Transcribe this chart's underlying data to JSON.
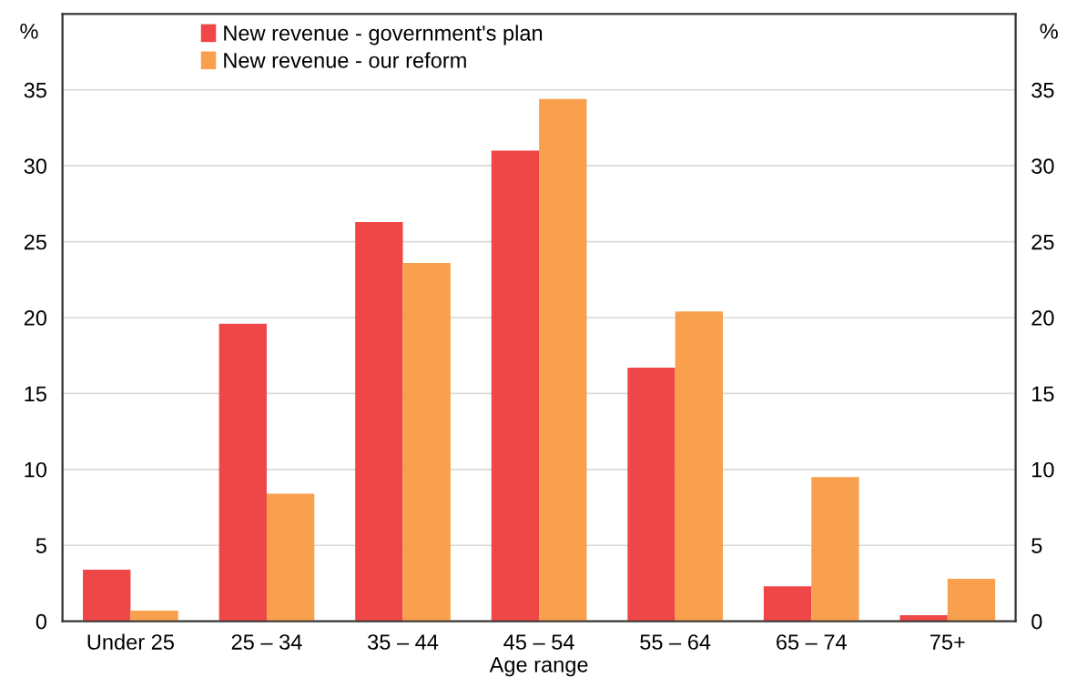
{
  "chart_data": {
    "type": "bar",
    "xlabel": "Age range",
    "ylabel": "%",
    "y2label": "%",
    "categories": [
      "Under 25",
      "25 – 34",
      "35 – 44",
      "45 – 54",
      "55 – 64",
      "65 – 74",
      "75+"
    ],
    "series": [
      {
        "name": "New revenue - government's plan",
        "color": "#ef4748",
        "values": [
          3.4,
          19.6,
          26.3,
          31.0,
          16.7,
          2.3,
          0.4
        ]
      },
      {
        "name": "New revenue - our reform",
        "color": "#f9a04f",
        "values": [
          0.7,
          8.4,
          23.6,
          34.4,
          20.4,
          9.5,
          2.8
        ]
      }
    ],
    "ylim": [
      0,
      40
    ],
    "yticks": [
      0,
      5,
      10,
      15,
      20,
      25,
      30,
      35
    ],
    "y2lim": [
      0,
      40
    ],
    "y2ticks": [
      0,
      5,
      10,
      15,
      20,
      25,
      30,
      35
    ],
    "grid": "y",
    "legend": "top left"
  }
}
